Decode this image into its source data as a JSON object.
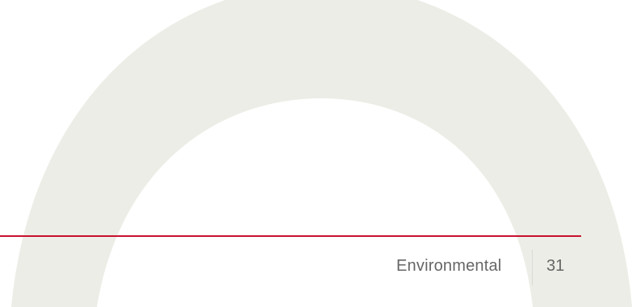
{
  "colors": {
    "arch": "#ecede6",
    "rule": "#c8102e",
    "footer_text": "#666666"
  },
  "footer": {
    "section": "Environmental",
    "page_number": "31"
  }
}
